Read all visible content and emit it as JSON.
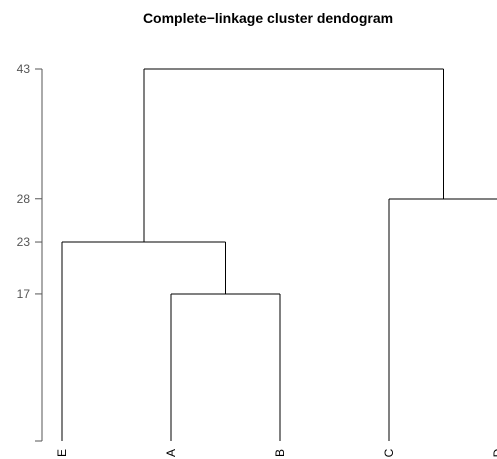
{
  "chart_data": {
    "type": "dendrogram",
    "title": "Complete−linkage cluster dendogram",
    "xlabel": "",
    "ylabel": "",
    "leaves": [
      "E",
      "A",
      "B",
      "C",
      "D"
    ],
    "yticks": [
      {
        "value": 0,
        "label": ""
      },
      {
        "value": 17,
        "label": "17"
      },
      {
        "value": 23,
        "label": "23"
      },
      {
        "value": 28,
        "label": "28"
      },
      {
        "value": 43,
        "label": "43"
      }
    ],
    "merges": [
      {
        "left": "A",
        "right": "B",
        "height": 17
      },
      {
        "left": "E",
        "right": "AB",
        "height": 23
      },
      {
        "left": "C",
        "right": "D",
        "height": 28
      },
      {
        "left": "EAB",
        "right": "CD",
        "height": 43
      }
    ],
    "ylim": [
      0,
      43
    ]
  }
}
